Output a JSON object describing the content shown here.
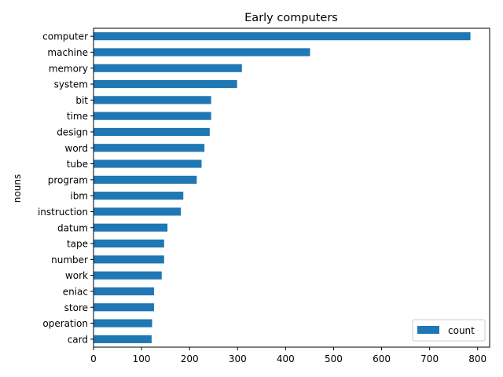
{
  "chart_data": {
    "type": "bar",
    "orientation": "horizontal",
    "title": "Early computers",
    "xlabel": "",
    "ylabel": "nouns",
    "categories": [
      "computer",
      "machine",
      "memory",
      "system",
      "bit",
      "time",
      "design",
      "word",
      "tube",
      "program",
      "ibm",
      "instruction",
      "datum",
      "tape",
      "number",
      "work",
      "eniac",
      "store",
      "operation",
      "card"
    ],
    "series": [
      {
        "name": "count",
        "color": "#1f77b4",
        "values": [
          785,
          451,
          309,
          299,
          245,
          245,
          242,
          231,
          225,
          215,
          187,
          182,
          154,
          147,
          147,
          142,
          126,
          126,
          122,
          121
        ]
      }
    ],
    "xlim": [
      0,
      825
    ],
    "xticks": [
      0,
      100,
      200,
      300,
      400,
      500,
      600,
      700,
      800
    ],
    "grid": false,
    "legend": {
      "position": "lower-right",
      "entries": [
        "count"
      ]
    }
  }
}
